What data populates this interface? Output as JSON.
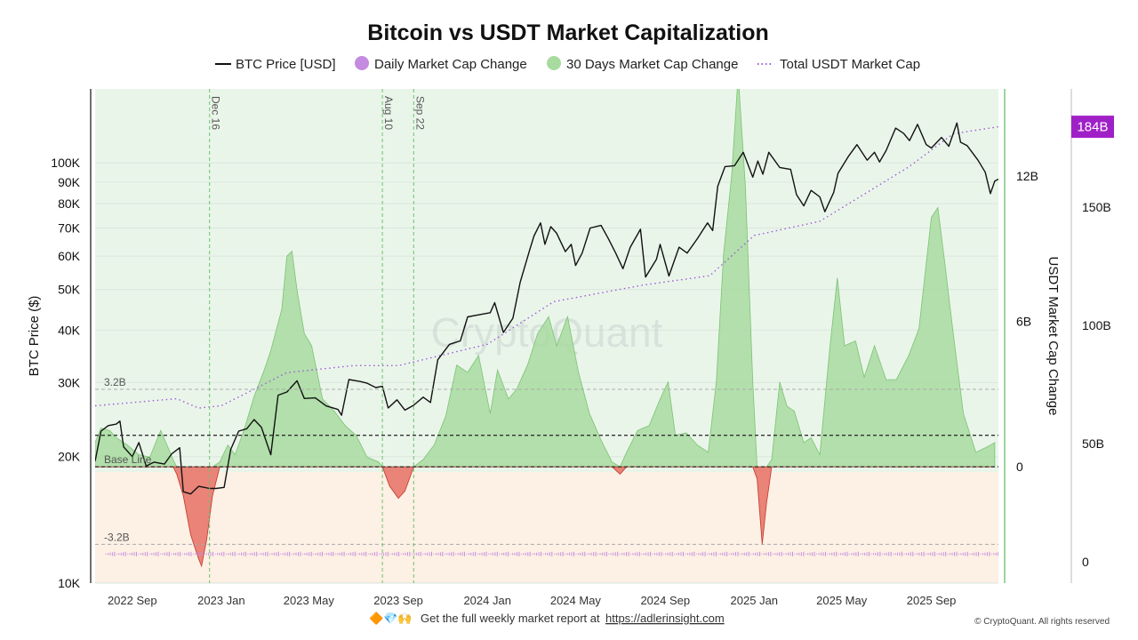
{
  "chart_data": {
    "type": "line",
    "title": "Bitcoin vs USDT Market Capitalization",
    "legend": [
      {
        "label": "BTC Price [USD]",
        "color": "#111111",
        "style": "line"
      },
      {
        "label": "Daily Market Cap Change",
        "color": "#c58be0",
        "style": "dot"
      },
      {
        "label": "30 Days Market Cap Change",
        "color": "#a8dba0",
        "style": "dot"
      },
      {
        "label": "Total USDT Market Cap",
        "color": "#9b59d6",
        "style": "dotted"
      }
    ],
    "y_left": {
      "label": "BTC Price ($)",
      "scale": "log",
      "range": [
        10000,
        150000
      ],
      "ticks": [
        [
          "10K",
          10000
        ],
        [
          "20K",
          20000
        ],
        [
          "30K",
          30000
        ],
        [
          "40K",
          40000
        ],
        [
          "50K",
          50000
        ],
        [
          "60K",
          60000
        ],
        [
          "70K",
          70000
        ],
        [
          "80K",
          80000
        ],
        [
          "90K",
          90000
        ],
        [
          "100K",
          100000
        ]
      ]
    },
    "y_mid": {
      "label": "USDT Market Cap Change",
      "unit": "USD",
      "range": [
        -4800000000.0,
        15600000000.0
      ],
      "ticks": [
        [
          "0",
          0
        ],
        [
          "6B",
          6000000000.0
        ],
        [
          "12B",
          12000000000.0
        ]
      ]
    },
    "y_right": {
      "range": [
        -9000000000.0,
        200000000000.0
      ],
      "ticks": [
        [
          "0",
          0
        ],
        [
          "50B",
          50000000000.0
        ],
        [
          "100B",
          100000000000.0
        ],
        [
          "150B",
          150000000000.0
        ]
      ],
      "current_badge": "184B",
      "badge_value": 184000000000.0,
      "badge_color": "#a020c8"
    },
    "x": {
      "start": "2022-07-12",
      "end": "2025-12-02",
      "ticks": [
        [
          "2022 Sep",
          "2022-09-01"
        ],
        [
          "2023 Jan",
          "2023-01-01"
        ],
        [
          "2023 May",
          "2023-05-01"
        ],
        [
          "2023 Sep",
          "2023-09-01"
        ],
        [
          "2024 Jan",
          "2024-01-01"
        ],
        [
          "2024 May",
          "2024-05-01"
        ],
        [
          "2024 Sep",
          "2024-09-01"
        ],
        [
          "2025 Jan",
          "2025-01-01"
        ],
        [
          "2025 May",
          "2025-05-01"
        ],
        [
          "2025 Sep",
          "2025-09-01"
        ]
      ]
    },
    "vertical_markers": [
      {
        "label": "Dec 16",
        "date": "2022-12-16"
      },
      {
        "label": "Aug 10",
        "date": "2023-08-10"
      },
      {
        "label": "Sep 22",
        "date": "2023-09-22"
      }
    ],
    "reference_lines": [
      {
        "label": "3.2B",
        "value": 3200000000.0,
        "style": "dashed-grey"
      },
      {
        "label": "Base Line",
        "value": 0,
        "style": "dashed-dark"
      },
      {
        "label": "-3.2B",
        "value": -3200000000.0,
        "style": "dashed-grey"
      }
    ],
    "btc_price": [
      [
        "2022-07-12",
        19500
      ],
      [
        "2022-07-20",
        23000
      ],
      [
        "2022-07-30",
        23700
      ],
      [
        "2022-08-10",
        23900
      ],
      [
        "2022-08-15",
        24300
      ],
      [
        "2022-08-20",
        21100
      ],
      [
        "2022-09-01",
        20000
      ],
      [
        "2022-09-10",
        21600
      ],
      [
        "2022-09-20",
        19000
      ],
      [
        "2022-10-01",
        19400
      ],
      [
        "2022-10-15",
        19200
      ],
      [
        "2022-10-25",
        20300
      ],
      [
        "2022-11-05",
        21000
      ],
      [
        "2022-11-10",
        16500
      ],
      [
        "2022-11-20",
        16300
      ],
      [
        "2022-12-01",
        17000
      ],
      [
        "2022-12-16",
        16800
      ],
      [
        "2022-12-25",
        16800
      ],
      [
        "2023-01-05",
        16900
      ],
      [
        "2023-01-14",
        20800
      ],
      [
        "2023-01-25",
        23000
      ],
      [
        "2023-02-05",
        23300
      ],
      [
        "2023-02-15",
        24500
      ],
      [
        "2023-02-25",
        23500
      ],
      [
        "2023-03-10",
        20200
      ],
      [
        "2023-03-20",
        28000
      ],
      [
        "2023-04-01",
        28500
      ],
      [
        "2023-04-15",
        30300
      ],
      [
        "2023-04-25",
        27500
      ],
      [
        "2023-05-10",
        27600
      ],
      [
        "2023-05-25",
        26400
      ],
      [
        "2023-06-10",
        25900
      ],
      [
        "2023-06-15",
        25100
      ],
      [
        "2023-06-25",
        30500
      ],
      [
        "2023-07-10",
        30200
      ],
      [
        "2023-07-20",
        29900
      ],
      [
        "2023-08-01",
        29200
      ],
      [
        "2023-08-10",
        29400
      ],
      [
        "2023-08-18",
        26100
      ],
      [
        "2023-08-30",
        27300
      ],
      [
        "2023-09-10",
        25800
      ],
      [
        "2023-09-22",
        26500
      ],
      [
        "2023-10-05",
        27700
      ],
      [
        "2023-10-15",
        26900
      ],
      [
        "2023-10-25",
        34000
      ],
      [
        "2023-11-10",
        37000
      ],
      [
        "2023-11-25",
        37700
      ],
      [
        "2023-12-05",
        43000
      ],
      [
        "2023-12-20",
        43500
      ],
      [
        "2024-01-05",
        44000
      ],
      [
        "2024-01-11",
        46500
      ],
      [
        "2024-01-23",
        39500
      ],
      [
        "2024-02-05",
        42700
      ],
      [
        "2024-02-15",
        52000
      ],
      [
        "2024-02-28",
        62000
      ],
      [
        "2024-03-05",
        67000
      ],
      [
        "2024-03-14",
        72000
      ],
      [
        "2024-03-20",
        64000
      ],
      [
        "2024-03-28",
        70500
      ],
      [
        "2024-04-05",
        68000
      ],
      [
        "2024-04-17",
        61500
      ],
      [
        "2024-04-25",
        64000
      ],
      [
        "2024-05-01",
        57000
      ],
      [
        "2024-05-10",
        61000
      ],
      [
        "2024-05-21",
        70000
      ],
      [
        "2024-06-05",
        71000
      ],
      [
        "2024-06-15",
        66000
      ],
      [
        "2024-06-25",
        61000
      ],
      [
        "2024-07-05",
        56000
      ],
      [
        "2024-07-15",
        63000
      ],
      [
        "2024-07-29",
        69500
      ],
      [
        "2024-08-05",
        53500
      ],
      [
        "2024-08-20",
        59000
      ],
      [
        "2024-08-25",
        64000
      ],
      [
        "2024-09-06",
        53800
      ],
      [
        "2024-09-20",
        63000
      ],
      [
        "2024-10-01",
        61000
      ],
      [
        "2024-10-15",
        66000
      ],
      [
        "2024-10-29",
        72000
      ],
      [
        "2024-11-05",
        69000
      ],
      [
        "2024-11-12",
        88000
      ],
      [
        "2024-11-22",
        98000
      ],
      [
        "2024-12-05",
        98500
      ],
      [
        "2024-12-17",
        106000
      ],
      [
        "2024-12-30",
        92500
      ],
      [
        "2025-01-06",
        101000
      ],
      [
        "2025-01-13",
        94000
      ],
      [
        "2025-01-21",
        106000
      ],
      [
        "2025-02-05",
        97500
      ],
      [
        "2025-02-20",
        96500
      ],
      [
        "2025-02-28",
        84000
      ],
      [
        "2025-03-10",
        79000
      ],
      [
        "2025-03-20",
        86000
      ],
      [
        "2025-04-01",
        83000
      ],
      [
        "2025-04-08",
        76500
      ],
      [
        "2025-04-20",
        85000
      ],
      [
        "2025-04-26",
        94500
      ],
      [
        "2025-05-10",
        103500
      ],
      [
        "2025-05-22",
        110500
      ],
      [
        "2025-06-05",
        101500
      ],
      [
        "2025-06-15",
        106000
      ],
      [
        "2025-06-22",
        100500
      ],
      [
        "2025-07-01",
        107000
      ],
      [
        "2025-07-14",
        121000
      ],
      [
        "2025-07-25",
        117500
      ],
      [
        "2025-08-02",
        113000
      ],
      [
        "2025-08-13",
        123500
      ],
      [
        "2025-08-25",
        110500
      ],
      [
        "2025-09-01",
        108500
      ],
      [
        "2025-09-15",
        115000
      ],
      [
        "2025-09-25",
        109500
      ],
      [
        "2025-10-06",
        124500
      ],
      [
        "2025-10-11",
        112000
      ],
      [
        "2025-10-20",
        110000
      ],
      [
        "2025-11-04",
        101500
      ],
      [
        "2025-11-14",
        95000
      ],
      [
        "2025-11-21",
        84500
      ],
      [
        "2025-11-27",
        90500
      ],
      [
        "2025-12-02",
        91500
      ]
    ],
    "usdt_mcap_change_30d": [
      [
        "2022-07-12",
        1000000000.0
      ],
      [
        "2022-07-20",
        1600000000.0
      ],
      [
        "2022-08-01",
        1500000000.0
      ],
      [
        "2022-08-10",
        1200000000.0
      ],
      [
        "2022-08-25",
        900000000.0
      ],
      [
        "2022-09-10",
        500000000.0
      ],
      [
        "2022-09-25",
        400000000.0
      ],
      [
        "2022-10-10",
        1500000000.0
      ],
      [
        "2022-10-20",
        800000000.0
      ],
      [
        "2022-10-27",
        300000000.0
      ],
      [
        "2022-11-01",
        -300000000.0
      ],
      [
        "2022-11-10",
        -1200000000.0
      ],
      [
        "2022-11-20",
        -2800000000.0
      ],
      [
        "2022-12-01",
        -3800000000.0
      ],
      [
        "2022-12-05",
        -4100000000.0
      ],
      [
        "2022-12-12",
        -3000000000.0
      ],
      [
        "2022-12-20",
        -1200000000.0
      ],
      [
        "2022-12-30",
        200000000.0
      ],
      [
        "2023-01-10",
        900000000.0
      ],
      [
        "2023-01-20",
        500000000.0
      ],
      [
        "2023-02-01",
        1500000000.0
      ],
      [
        "2023-02-15",
        2900000000.0
      ],
      [
        "2023-03-01",
        4000000000.0
      ],
      [
        "2023-03-10",
        4800000000.0
      ],
      [
        "2023-03-25",
        6500000000.0
      ],
      [
        "2023-04-01",
        8700000000.0
      ],
      [
        "2023-04-08",
        8900000000.0
      ],
      [
        "2023-04-15",
        7300000000.0
      ],
      [
        "2023-04-25",
        5500000000.0
      ],
      [
        "2023-05-05",
        5000000000.0
      ],
      [
        "2023-05-20",
        2800000000.0
      ],
      [
        "2023-06-05",
        2300000000.0
      ],
      [
        "2023-06-20",
        1700000000.0
      ],
      [
        "2023-07-05",
        1300000000.0
      ],
      [
        "2023-07-20",
        400000000.0
      ],
      [
        "2023-08-05",
        200000000.0
      ],
      [
        "2023-08-10",
        0.0
      ],
      [
        "2023-08-20",
        -800000000.0
      ],
      [
        "2023-09-01",
        -1300000000.0
      ],
      [
        "2023-09-10",
        -1000000000.0
      ],
      [
        "2023-09-22",
        0.0
      ],
      [
        "2023-10-05",
        300000000.0
      ],
      [
        "2023-10-20",
        900000000.0
      ],
      [
        "2023-11-05",
        2100000000.0
      ],
      [
        "2023-11-20",
        4200000000.0
      ],
      [
        "2023-12-05",
        3900000000.0
      ],
      [
        "2023-12-20",
        4600000000.0
      ],
      [
        "2024-01-05",
        2200000000.0
      ],
      [
        "2024-01-15",
        4000000000.0
      ],
      [
        "2024-01-30",
        2800000000.0
      ],
      [
        "2024-02-10",
        3200000000.0
      ],
      [
        "2024-02-25",
        4200000000.0
      ],
      [
        "2024-03-10",
        5500000000.0
      ],
      [
        "2024-03-25",
        6200000000.0
      ],
      [
        "2024-04-05",
        5000000000.0
      ],
      [
        "2024-04-20",
        6200000000.0
      ],
      [
        "2024-05-05",
        3900000000.0
      ],
      [
        "2024-05-20",
        2200000000.0
      ],
      [
        "2024-06-05",
        1100000000.0
      ],
      [
        "2024-06-20",
        200000000.0
      ],
      [
        "2024-07-01",
        -300000000.0
      ],
      [
        "2024-07-10",
        600000000.0
      ],
      [
        "2024-07-25",
        1500000000.0
      ],
      [
        "2024-08-10",
        1700000000.0
      ],
      [
        "2024-08-25",
        2800000000.0
      ],
      [
        "2024-09-05",
        3500000000.0
      ],
      [
        "2024-09-15",
        1300000000.0
      ],
      [
        "2024-09-30",
        1400000000.0
      ],
      [
        "2024-10-15",
        900000000.0
      ],
      [
        "2024-10-30",
        600000000.0
      ],
      [
        "2024-11-10",
        3500000000.0
      ],
      [
        "2024-11-20",
        8800000000.0
      ],
      [
        "2024-12-01",
        12000000000.0
      ],
      [
        "2024-12-10",
        16200000000.0
      ],
      [
        "2024-12-20",
        11500000000.0
      ],
      [
        "2024-12-30",
        3500000000.0
      ],
      [
        "2025-01-05",
        -500000000.0
      ],
      [
        "2025-01-12",
        -3200000000.0
      ],
      [
        "2025-01-18",
        -1500000000.0
      ],
      [
        "2025-01-25",
        300000000.0
      ],
      [
        "2025-02-05",
        3500000000.0
      ],
      [
        "2025-02-15",
        2500000000.0
      ],
      [
        "2025-02-25",
        2300000000.0
      ],
      [
        "2025-03-10",
        1000000000.0
      ],
      [
        "2025-03-20",
        1200000000.0
      ],
      [
        "2025-04-01",
        500000000.0
      ],
      [
        "2025-04-15",
        5000000000.0
      ],
      [
        "2025-04-25",
        7800000000.0
      ],
      [
        "2025-05-05",
        5000000000.0
      ],
      [
        "2025-05-20",
        5200000000.0
      ],
      [
        "2025-06-01",
        3700000000.0
      ],
      [
        "2025-06-15",
        5000000000.0
      ],
      [
        "2025-07-01",
        3600000000.0
      ],
      [
        "2025-07-15",
        3600000000.0
      ],
      [
        "2025-08-01",
        4600000000.0
      ],
      [
        "2025-08-15",
        5700000000.0
      ],
      [
        "2025-09-01",
        10300000000.0
      ],
      [
        "2025-09-10",
        10700000000.0
      ],
      [
        "2025-09-20",
        8300000000.0
      ],
      [
        "2025-10-01",
        5500000000.0
      ],
      [
        "2025-10-15",
        2200000000.0
      ],
      [
        "2025-11-01",
        600000000.0
      ],
      [
        "2025-11-15",
        800000000.0
      ],
      [
        "2025-11-27",
        1000000000.0
      ]
    ],
    "total_usdt_mcap": [
      [
        "2022-07-12",
        66000000000.0
      ],
      [
        "2022-11-01",
        69000000000.0
      ],
      [
        "2022-12-01",
        65000000000.0
      ],
      [
        "2023-01-01",
        66000000000.0
      ],
      [
        "2023-04-01",
        80000000000.0
      ],
      [
        "2023-07-01",
        83000000000.0
      ],
      [
        "2023-09-01",
        83000000000.0
      ],
      [
        "2024-01-01",
        92000000000.0
      ],
      [
        "2024-04-01",
        110000000000.0
      ],
      [
        "2024-08-01",
        117000000000.0
      ],
      [
        "2024-11-01",
        121000000000.0
      ],
      [
        "2025-01-01",
        138000000000.0
      ],
      [
        "2025-04-01",
        144000000000.0
      ],
      [
        "2025-08-01",
        167000000000.0
      ],
      [
        "2025-10-01",
        181000000000.0
      ],
      [
        "2025-12-02",
        184000000000.0
      ]
    ]
  },
  "footer": {
    "emoji": "🔶💎🙌",
    "text": "Get the full weekly market report at",
    "link": "https://adlerinsight.com"
  },
  "copyright": "© CryptoQuant. All rights reserved",
  "watermark": "CryptoQuant"
}
